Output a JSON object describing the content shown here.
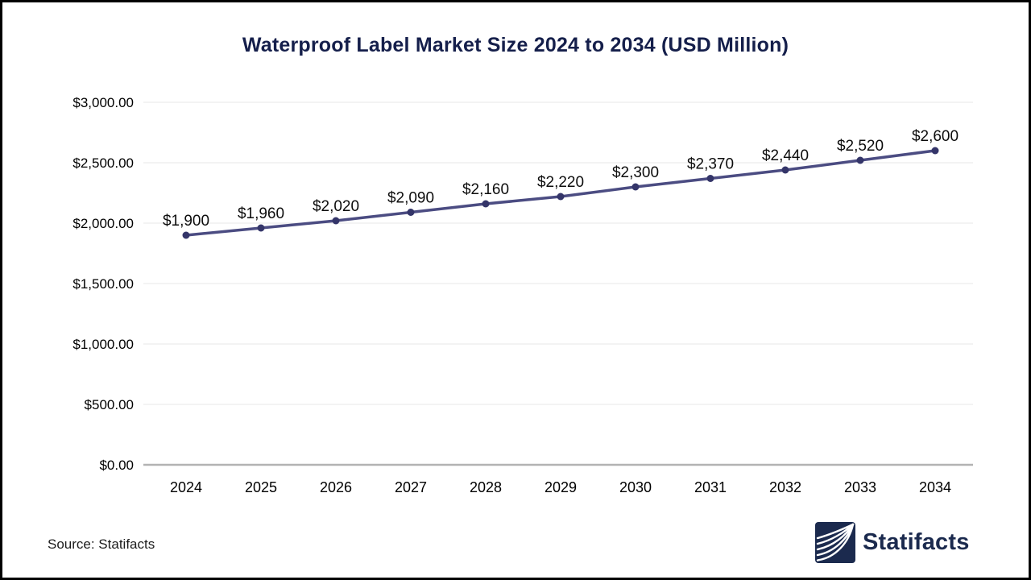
{
  "page": {
    "background": "#ffffff",
    "frame_border_color": "#000000",
    "source_label": "Source: Statifacts",
    "brand_name": "Statifacts"
  },
  "chart_data": {
    "type": "line",
    "title": "Waterproof Label Market Size 2024 to 2034 (USD Million)",
    "categories": [
      "2024",
      "2025",
      "2026",
      "2027",
      "2028",
      "2029",
      "2030",
      "2031",
      "2032",
      "2033",
      "2034"
    ],
    "values": [
      1900,
      1960,
      2020,
      2090,
      2160,
      2220,
      2300,
      2370,
      2440,
      2520,
      2600
    ],
    "data_labels": [
      "$1,900",
      "$1,960",
      "$2,020",
      "$2,090",
      "$2,160",
      "$2,220",
      "$2,300",
      "$2,370",
      "$2,440",
      "$2,520",
      "$2,600"
    ],
    "y_tick_labels": [
      "$0.00",
      "$500.00",
      "$1,000.00",
      "$1,500.00",
      "$2,000.00",
      "$2,500.00",
      "$3,000.00"
    ],
    "ylim": [
      0,
      3000
    ],
    "y_tick_step": 500,
    "grid": true,
    "legend": "none",
    "colors": {
      "line": "#4b4c82",
      "marker": "#343569",
      "gridline": "#e7e7e7",
      "axis_line": "#b3b3b3",
      "title": "#151f4b",
      "tick_text": "#000000",
      "data_label_text": "#0d0d0d"
    }
  }
}
